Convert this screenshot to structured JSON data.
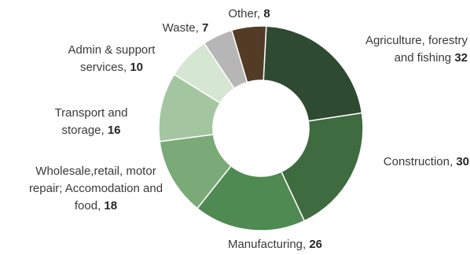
{
  "chart_data": {
    "type": "pie",
    "title": "",
    "subtitle": "",
    "hole": true,
    "categories": [
      "Agriculture, forestry and fishing",
      "Construction",
      "Manufacturing",
      "Wholesale,retail, motor repair; Accomodation and food",
      "Transport and storage",
      "Admin & support services",
      "Waste",
      "Other"
    ],
    "values": [
      32,
      30,
      26,
      18,
      16,
      10,
      7,
      8
    ],
    "colors": [
      "#2e4a30",
      "#3f6b41",
      "#4e8a52",
      "#7aaa78",
      "#a3c6a0",
      "#d5e6d2",
      "#b6b6b6",
      "#533b26"
    ],
    "labels": [
      {
        "lines": [
          "Agriculture, forestry",
          "and fishing "
        ],
        "value": "32"
      },
      {
        "lines": [
          "Construction, "
        ],
        "value": "30"
      },
      {
        "lines": [
          "Manufacturing, "
        ],
        "value": "26"
      },
      {
        "lines": [
          "Wholesale,retail, motor",
          "repair; Accomodation and",
          "food, "
        ],
        "value": "18"
      },
      {
        "lines": [
          "Transport and",
          "storage, "
        ],
        "value": "16"
      },
      {
        "lines": [
          "Admin & support",
          "services, "
        ],
        "value": "10"
      },
      {
        "lines": [
          "Waste, "
        ],
        "value": "7"
      },
      {
        "lines": [
          "Other, "
        ],
        "value": "8"
      }
    ]
  }
}
